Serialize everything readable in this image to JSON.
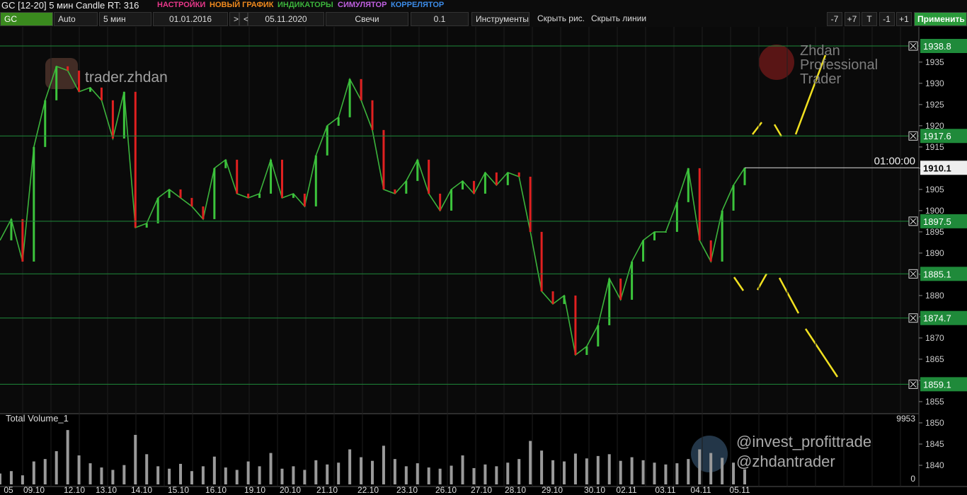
{
  "toolbar": {
    "title": "GC [12-20] 5 мин Candle RT: 316",
    "menu": [
      {
        "text": "НАСТРОЙКИ",
        "color": "#e8388a"
      },
      {
        "text": "НОВЫЙ ГРАФИК",
        "color": "#f08a1e"
      },
      {
        "text": "ИНДИКАТОРЫ",
        "color": "#3cb43c"
      },
      {
        "text": "СИМУЛЯТОР",
        "color": "#c060e0"
      },
      {
        "text": "КОРРЕЛЯТОР",
        "color": "#3c8ce8"
      }
    ],
    "controls": [
      "GC",
      "Auto",
      "5 мин",
      "01.01.2016",
      ">",
      "<",
      "05.11.2020",
      "Свечи",
      "0.1",
      "Инструменты",
      "Скрыть рис.",
      "Скрыть линии"
    ],
    "buttons": [
      "-7",
      "+7",
      "T",
      "-1",
      "+1"
    ],
    "apply": "Применить"
  },
  "watermarks": [
    "trader.zhdan",
    "Zhdan Professional Trader",
    "@invest_profittrade",
    "@zhdantrader"
  ],
  "chart_data": {
    "type": "line",
    "color": "#3cb43c",
    "values": [
      1893,
      1898,
      1888,
      1915,
      1926,
      1934,
      1933,
      1928,
      1929,
      1926,
      1917,
      1928,
      1896,
      1897,
      1903,
      1905,
      1903,
      1901,
      1898,
      1910,
      1912,
      1904,
      1903,
      1904,
      1912,
      1903,
      1904,
      1901,
      1913,
      1920,
      1922,
      1931,
      1926,
      1919,
      1905,
      1904,
      1907,
      1912,
      1904,
      1900,
      1905,
      1907,
      1904,
      1909,
      1906,
      1909,
      1908,
      1895,
      1881,
      1878,
      1880,
      1866,
      1868,
      1873,
      1884,
      1879,
      1888,
      1893,
      1895,
      1895,
      1902,
      1910,
      1893,
      1888,
      1900,
      1906,
      1910.1
    ],
    "ylim": [
      1835,
      1943.3
    ],
    "yticks": [
      1840,
      1845,
      1850,
      1855,
      1860,
      1865,
      1870,
      1875,
      1880,
      1885,
      1890,
      1895,
      1900,
      1905,
      1910,
      1915,
      1920,
      1925,
      1930,
      1935
    ],
    "levels": [
      1938.8,
      1917.6,
      1897.5,
      1885.1,
      1874.7,
      1859.1
    ],
    "last_price": 1910.1,
    "timer": "01:00:00",
    "date_labels": [
      "05",
      "09.10",
      "12.10",
      "13.10",
      "14.10",
      "15.10",
      "16.10",
      "19.10",
      "20.10",
      "21.10",
      "22.10",
      "23.10",
      "26.10",
      "27.10",
      "28.10",
      "29.10",
      "30.10",
      "02.11",
      "03.11",
      "04.11",
      "05.11"
    ],
    "volume": {
      "title": "Total Volume_1",
      "ylim": [
        0,
        9953
      ],
      "values": [
        1800,
        2200,
        1500,
        3800,
        4200,
        5500,
        9000,
        4800,
        3500,
        2800,
        2400,
        3200,
        8200,
        5000,
        3000,
        2600,
        3400,
        2200,
        3000,
        4600,
        2800,
        2400,
        3800,
        3000,
        5200,
        2600,
        3000,
        2400,
        4000,
        3300,
        3600,
        5800,
        4500,
        3900,
        6400,
        4200,
        3000,
        3500,
        2800,
        2600,
        3100,
        4800,
        2700,
        3300,
        3000,
        3600,
        4200,
        7200,
        5600,
        4000,
        3800,
        5100,
        4300,
        4700,
        5000,
        3900,
        4500,
        4000,
        3600,
        3300,
        3500,
        4200,
        5800,
        5200,
        4400,
        3600,
        2500
      ]
    }
  }
}
